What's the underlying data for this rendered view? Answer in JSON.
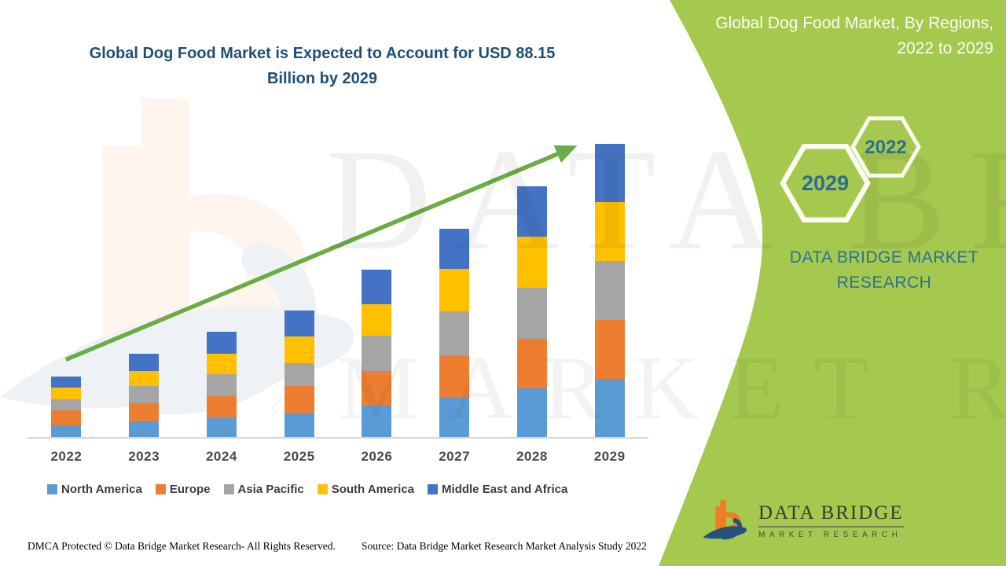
{
  "chart": {
    "title_line1": "Global Dog Food Market is Expected to Account for USD 88.15",
    "title_line2": "Billion by 2029"
  },
  "chart_data": {
    "type": "bar",
    "stacked": true,
    "title": "Global Dog Food Market is Expected to Account for USD 88.15 Billion by 2029",
    "unit": "USD Billion",
    "total_2029": 88.15,
    "categories": [
      "2022",
      "2023",
      "2024",
      "2025",
      "2026",
      "2027",
      "2028",
      "2029"
    ],
    "series": [
      {
        "name": "North America",
        "color": "#5B9BD5",
        "values": [
          3.5,
          4.7,
          5.9,
          7.1,
          9.5,
          11.8,
          14.7,
          17.5
        ]
      },
      {
        "name": "Europe",
        "color": "#ED7D31",
        "values": [
          4.5,
          5.4,
          6.4,
          8.3,
          10.4,
          12.8,
          14.9,
          17.7
        ]
      },
      {
        "name": "Asia Pacific",
        "color": "#A5A5A5",
        "values": [
          3.3,
          5.4,
          6.6,
          6.9,
          10.6,
          13.2,
          15.4,
          17.7
        ]
      },
      {
        "name": "South America",
        "color": "#FFC000",
        "values": [
          3.5,
          4.5,
          6.1,
          8.0,
          9.5,
          12.8,
          15.4,
          17.7
        ]
      },
      {
        "name": "Middle East and Africa",
        "color": "#4472C4",
        "values": [
          3.5,
          5.0,
          6.6,
          7.8,
          10.4,
          12.1,
          15.1,
          17.6
        ]
      }
    ],
    "estimated_totals": [
      18.3,
      25.0,
      31.6,
      38.1,
      50.4,
      62.7,
      75.5,
      88.15
    ],
    "trend_arrow": true,
    "legend_position": "bottom",
    "y_axis_visible": false,
    "grid": false
  },
  "side_panel": {
    "title_line1": "Global Dog Food Market, By Regions,",
    "title_line2": "2022 to 2029",
    "hexagon_large_label": "2029",
    "hexagon_small_label": "2022",
    "brand_text": "DATA BRIDGE MARKET RESEARCH",
    "logo_line1": "DATA BRIDGE",
    "logo_line2": "MARKET RESEARCH"
  },
  "footer": {
    "left": "DMCA Protected © Data Bridge Market Research- All Rights Reserved.",
    "right": "Source: Data Bridge Market Research Market Analysis Study 2022"
  },
  "watermark": {
    "row1": "DATA BRIDGE",
    "row2": "MARKET RESEARCH"
  },
  "colors": {
    "panel_green": "#A5C84E",
    "trend_arrow_green": "#6BAC45",
    "title_blue": "#1F4E79",
    "panel_text_teal": "#2B7095",
    "hexagon_year_text": "#2D6C94",
    "axis_line": "#D9D9D9",
    "axis_label": "#4a4a4a",
    "legend_text": "#3e3e3e",
    "logo_orange": "#F07D26",
    "logo_navy": "#26517D"
  }
}
